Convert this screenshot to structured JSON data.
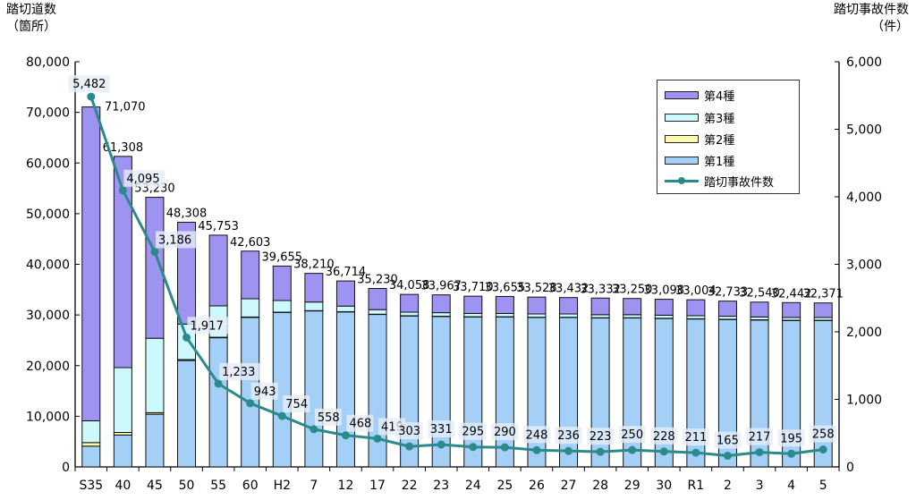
{
  "left_axis": {
    "title": "踏切道数",
    "unit": "（箇所）"
  },
  "right_axis": {
    "title": "踏切事故件数",
    "unit": "（件）"
  },
  "legend": {
    "items": [
      {
        "label": "第4種",
        "color": "#9e93f0",
        "key": "type4"
      },
      {
        "label": "第3種",
        "color": "#ccf9fb",
        "key": "type3"
      },
      {
        "label": "第2種",
        "color": "#fbf9ab",
        "key": "type2"
      },
      {
        "label": "第1種",
        "color": "#a4d0f8",
        "key": "type1"
      }
    ],
    "line_label": "踏切事故件数",
    "line_color": "#2a8a8c"
  },
  "chart_data": {
    "type": "bar",
    "categories": [
      "S35",
      "40",
      "45",
      "50",
      "55",
      "60",
      "H2",
      "7",
      "12",
      "17",
      "22",
      "23",
      "24",
      "25",
      "26",
      "27",
      "28",
      "29",
      "30",
      "R1",
      "2",
      "3",
      "4",
      "5"
    ],
    "ylim": [
      0,
      80000
    ],
    "y2lim": [
      0,
      6000
    ],
    "yticks": [
      "0",
      "10,000",
      "20,000",
      "30,000",
      "40,000",
      "50,000",
      "60,000",
      "70,000",
      "80,000"
    ],
    "y2ticks": [
      "0",
      "1,000",
      "2,000",
      "3,000",
      "4,000",
      "5,000",
      "6,000"
    ],
    "totals": [
      71070,
      61308,
      53230,
      48308,
      45753,
      42603,
      39655,
      38210,
      36714,
      35230,
      34058,
      33967,
      33710,
      33655,
      33528,
      33432,
      33332,
      33250,
      33098,
      33004,
      32733,
      32540,
      32442,
      32371
    ],
    "total_labels": [
      "71,070",
      "61,308",
      "53,230",
      "48,308",
      "45,753",
      "42,603",
      "39,655",
      "38,210",
      "36,714",
      "35,230",
      "34,058",
      "33,967",
      "33,710",
      "33,655",
      "33,528",
      "33,432",
      "33,332",
      "33,250",
      "33,098",
      "33,004",
      "32,733",
      "32,540",
      "32,442",
      "32,371"
    ],
    "series": [
      {
        "name": "第1種",
        "values": [
          4100,
          6300,
          10400,
          21000,
          25500,
          29500,
          30500,
          30800,
          30600,
          30100,
          29800,
          29700,
          29600,
          29600,
          29500,
          29500,
          29400,
          29400,
          29300,
          29200,
          29100,
          29000,
          28900,
          28900
        ]
      },
      {
        "name": "第2種",
        "values": [
          700,
          500,
          300,
          200,
          100,
          100,
          50,
          50,
          50,
          50,
          50,
          50,
          50,
          50,
          50,
          50,
          50,
          50,
          50,
          50,
          50,
          50,
          50,
          50
        ]
      },
      {
        "name": "第3種",
        "values": [
          4300,
          12800,
          14700,
          7000,
          6200,
          3600,
          2300,
          1700,
          1100,
          900,
          700,
          700,
          650,
          650,
          650,
          650,
          600,
          600,
          600,
          600,
          600,
          550,
          550,
          550
        ]
      },
      {
        "name": "第4種",
        "values": [
          61970,
          41708,
          27830,
          20108,
          13953,
          9403,
          6805,
          5660,
          4964,
          4180,
          3508,
          3517,
          3410,
          3355,
          3328,
          3232,
          3282,
          3200,
          3148,
          3154,
          2983,
          2940,
          2942,
          2871
        ]
      }
    ],
    "line": {
      "name": "踏切事故件数",
      "values": [
        5482,
        4095,
        3186,
        1917,
        1233,
        943,
        754,
        558,
        468,
        419,
        303,
        331,
        295,
        290,
        248,
        236,
        223,
        250,
        228,
        211,
        165,
        217,
        195,
        258
      ],
      "labels": [
        "5,482",
        "4,095",
        "3,186",
        "1,917",
        "1,233",
        "943",
        "754",
        "558",
        "468",
        "419",
        "303",
        "331",
        "295",
        "290",
        "248",
        "236",
        "223",
        "250",
        "228",
        "211",
        "165",
        "217",
        "195",
        "258"
      ]
    }
  }
}
